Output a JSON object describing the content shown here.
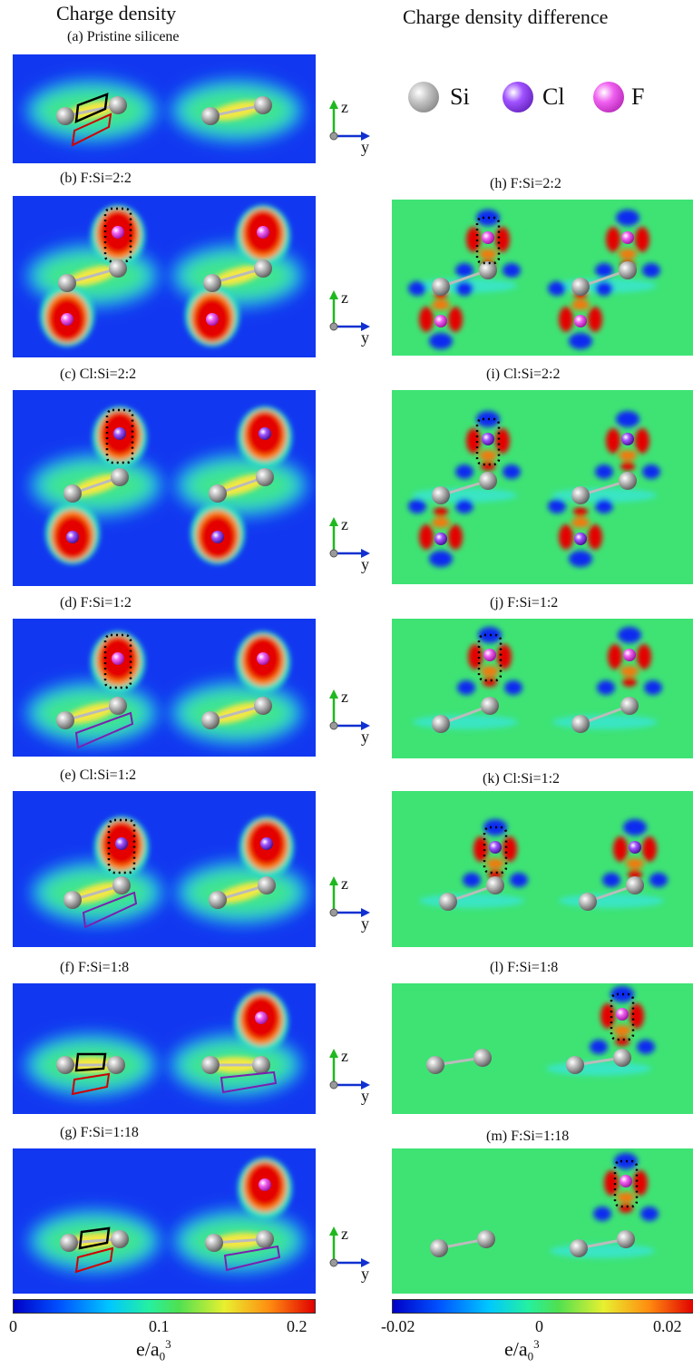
{
  "headers": {
    "left": "Charge density",
    "right": "Charge density difference"
  },
  "legend": [
    {
      "symbol": "Si",
      "color": "#9a9a9a"
    },
    {
      "symbol": "Cl",
      "color": "#7a22d8"
    },
    {
      "symbol": "F",
      "color": "#e23ce0"
    }
  ],
  "axes_labels": {
    "z": "z",
    "y": "y"
  },
  "panels_left": [
    {
      "label": "(a) Pristine silicene",
      "ads": "none"
    },
    {
      "label": "(b) F:Si=2:2",
      "ads": "F-both"
    },
    {
      "label": "(c) Cl:Si=2:2",
      "ads": "Cl-both"
    },
    {
      "label": "(d) F:Si=1:2",
      "ads": "F-one"
    },
    {
      "label": "(e) Cl:Si=1:2",
      "ads": "Cl-one"
    },
    {
      "label": "(f) F:Si=1:8",
      "ads": "F-dilute"
    },
    {
      "label": "(g) F:Si=1:18",
      "ads": "F-dilute"
    }
  ],
  "panels_right": [
    {
      "label": "(h) F:Si=2:2",
      "ads": "F-both"
    },
    {
      "label": "(i) Cl:Si=2:2",
      "ads": "Cl-both"
    },
    {
      "label": "(j) F:Si=1:2",
      "ads": "F-one"
    },
    {
      "label": "(k) Cl:Si=1:2",
      "ads": "Cl-one"
    },
    {
      "label": "(l) F:Si=1:8",
      "ads": "F-dilute"
    },
    {
      "label": "(m) F:Si=1:18",
      "ads": "F-dilute"
    }
  ],
  "colorbar_left": {
    "ticks": [
      "0",
      "0.1",
      "0.2"
    ],
    "unit": "e/a",
    "unit_sub": "0",
    "unit_sup": "3"
  },
  "colorbar_right": {
    "ticks": [
      "-0.02",
      "0",
      "0.02"
    ],
    "unit": "e/a",
    "unit_sub": "0",
    "unit_sup": "3"
  }
}
